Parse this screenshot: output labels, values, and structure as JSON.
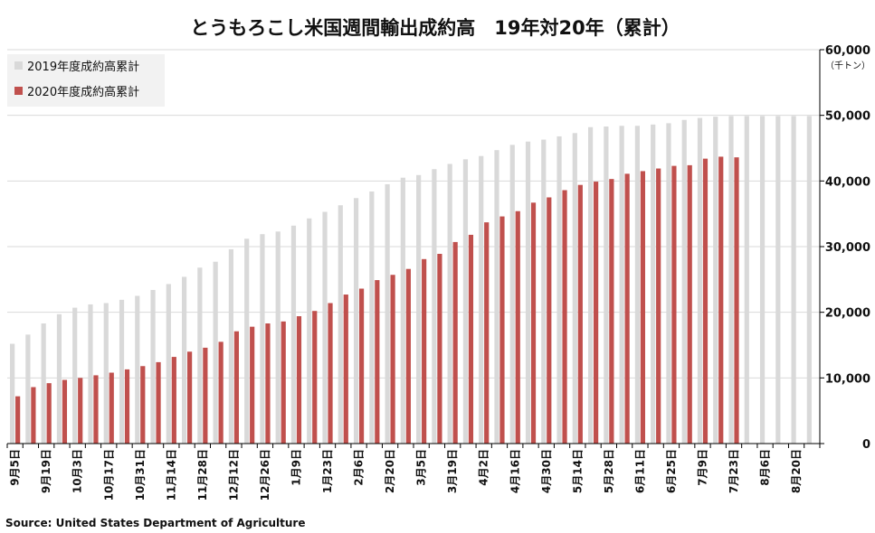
{
  "chart_data": {
    "type": "bar",
    "title": "とうもろこし米国週間輸出成約高　19年対20年（累計）",
    "unit_label": "（千トン）",
    "source": "Source: United States Department of Agriculture",
    "ylim": [
      0,
      60000
    ],
    "yticks": [
      0,
      10000,
      20000,
      30000,
      40000,
      50000,
      60000
    ],
    "ytick_labels": [
      "0",
      "10,000",
      "20,000",
      "30,000",
      "40,000",
      "50,000",
      "60,000"
    ],
    "grid": true,
    "legend_position": "top-left",
    "colors": {
      "s2019": "#d9d9d9",
      "s2020": "#c0504d",
      "grid": "#d9d9d9",
      "axis": "#000000"
    },
    "categories": [
      "9月5日",
      "9月12日",
      "9月19日",
      "9月26日",
      "10月3日",
      "10月10日",
      "10月17日",
      "10月24日",
      "10月31日",
      "11月7日",
      "11月14日",
      "11月21日",
      "11月28日",
      "12月5日",
      "12月12日",
      "12月19日",
      "12月26日",
      "1月2日",
      "1月9日",
      "1月16日",
      "1月23日",
      "1月30日",
      "2月6日",
      "2月13日",
      "2月20日",
      "2月27日",
      "3月5日",
      "3月12日",
      "3月19日",
      "3月26日",
      "4月2日",
      "4月9日",
      "4月16日",
      "4月23日",
      "4月30日",
      "5月7日",
      "5月14日",
      "5月21日",
      "5月28日",
      "6月4日",
      "6月11日",
      "6月18日",
      "6月25日",
      "7月2日",
      "7月9日",
      "7月16日",
      "7月23日",
      "7月30日",
      "8月6日",
      "8月13日",
      "8月20日",
      "8月27日"
    ],
    "xtick_labels": [
      "9月5日",
      "9月19日",
      "10月3日",
      "10月17日",
      "10月31日",
      "11月14日",
      "11月28日",
      "12月12日",
      "12月26日",
      "1月9日",
      "1月23日",
      "2月6日",
      "2月20日",
      "3月5日",
      "3月19日",
      "4月2日",
      "4月16日",
      "4月30日",
      "5月14日",
      "5月28日",
      "6月11日",
      "6月25日",
      "7月9日",
      "7月23日",
      "8月6日",
      "8月20日"
    ],
    "series": [
      {
        "name": "2019年度成約高累計",
        "values": [
          15200,
          16600,
          18300,
          19700,
          20700,
          21200,
          21400,
          21900,
          22500,
          23400,
          24300,
          25400,
          26800,
          27700,
          29600,
          31200,
          31900,
          32300,
          33200,
          34300,
          35300,
          36300,
          37400,
          38400,
          39500,
          40500,
          40900,
          41800,
          42600,
          43300,
          43800,
          44700,
          45500,
          46000,
          46300,
          46800,
          47300,
          48200,
          48300,
          48400,
          48400,
          48600,
          48800,
          49300,
          49600,
          49800,
          49900,
          49900,
          49900,
          49900,
          49900,
          49900
        ]
      },
      {
        "name": "2020年度成約高累計",
        "values": [
          7200,
          8600,
          9200,
          9700,
          10000,
          10400,
          10800,
          11300,
          11800,
          12400,
          13200,
          14000,
          14600,
          15500,
          17100,
          17800,
          18300,
          18600,
          19400,
          20200,
          21400,
          22700,
          23600,
          24900,
          25700,
          26600,
          28100,
          28900,
          30700,
          31800,
          33700,
          34600,
          35400,
          36700,
          37500,
          38600,
          39400,
          39900,
          40300,
          41100,
          41500,
          41900,
          42300,
          42400,
          43400,
          43700,
          43600,
          null,
          null,
          null,
          null,
          null
        ]
      }
    ]
  }
}
